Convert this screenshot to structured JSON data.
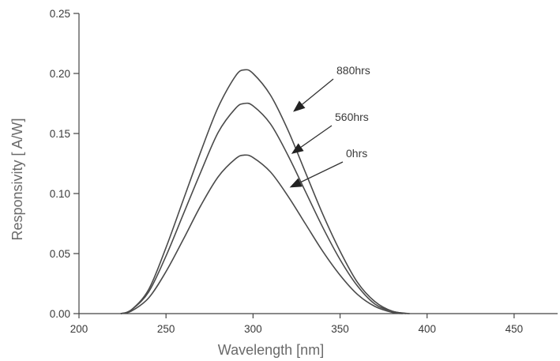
{
  "chart_data": {
    "type": "line",
    "xlabel": "Wavelength [nm]",
    "ylabel": "Responsivity [ A/W]",
    "xlim": [
      200,
      475
    ],
    "ylim": [
      0,
      0.25
    ],
    "xticks": [
      200,
      250,
      300,
      350,
      400,
      450
    ],
    "yticks": [
      "0.00",
      "0.05",
      "0.10",
      "0.15",
      "0.20",
      "0.25"
    ],
    "grid": false,
    "legend": "none",
    "line_color": "#4a4a4a",
    "series": [
      {
        "name": "880hrs",
        "x": [
          224,
          230,
          240,
          250,
          260,
          270,
          280,
          290,
          295,
          300,
          310,
          320,
          330,
          340,
          350,
          360,
          370,
          380,
          390
        ],
        "y": [
          0.0,
          0.003,
          0.02,
          0.055,
          0.095,
          0.135,
          0.172,
          0.198,
          0.203,
          0.2,
          0.182,
          0.153,
          0.118,
          0.083,
          0.052,
          0.026,
          0.01,
          0.002,
          0.0
        ]
      },
      {
        "name": "560hrs",
        "x": [
          224,
          230,
          240,
          250,
          260,
          270,
          280,
          290,
          295,
          300,
          310,
          320,
          330,
          340,
          350,
          360,
          370,
          380,
          388
        ],
        "y": [
          0.0,
          0.003,
          0.018,
          0.048,
          0.083,
          0.118,
          0.151,
          0.171,
          0.175,
          0.173,
          0.158,
          0.132,
          0.102,
          0.072,
          0.045,
          0.023,
          0.008,
          0.002,
          0.0
        ]
      },
      {
        "name": "0hrs",
        "x": [
          224,
          230,
          240,
          250,
          260,
          270,
          280,
          290,
          295,
          300,
          310,
          320,
          330,
          340,
          350,
          360,
          370,
          380,
          386
        ],
        "y": [
          0.0,
          0.002,
          0.013,
          0.035,
          0.062,
          0.09,
          0.114,
          0.129,
          0.132,
          0.13,
          0.118,
          0.098,
          0.075,
          0.052,
          0.032,
          0.016,
          0.006,
          0.001,
          0.0
        ]
      }
    ],
    "annotations": [
      {
        "text": "880hrs",
        "arrow_to_series": "880hrs",
        "arrow_tip": [
          323,
          0.168
        ]
      },
      {
        "text": "560hrs",
        "arrow_to_series": "560hrs",
        "arrow_tip": [
          322,
          0.133
        ]
      },
      {
        "text": "0hrs",
        "arrow_to_series": "0hrs",
        "arrow_tip": [
          321,
          0.105
        ]
      }
    ]
  }
}
